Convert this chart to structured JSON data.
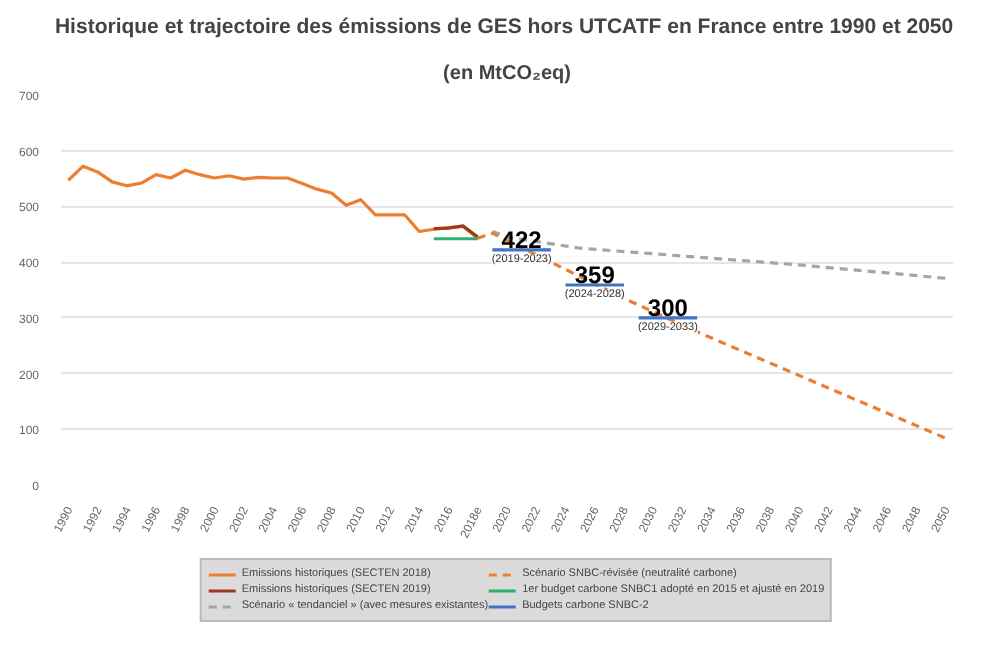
{
  "chart_data": {
    "type": "line",
    "title": "Historique et trajectoire des émissions  de GES hors UTCATF en France entre 1990 et 2050",
    "subtitle": "(en MtCO₂eq)",
    "xlim": [
      1989.5,
      2050.5
    ],
    "ylim": [
      0,
      700
    ],
    "xticks": [
      1990,
      1992,
      1994,
      1996,
      1998,
      2000,
      2002,
      2004,
      2006,
      2008,
      2010,
      2012,
      2014,
      2016,
      {
        "value": 2018,
        "label": "2018e"
      },
      2020,
      2022,
      2024,
      2026,
      2028,
      2030,
      2032,
      2034,
      2036,
      2038,
      2040,
      2042,
      2044,
      2046,
      2048,
      2050
    ],
    "yticks": [
      0,
      100,
      200,
      300,
      400,
      500,
      600,
      700
    ],
    "grid": "y",
    "legend": "bottom",
    "marker": "none",
    "series": [
      {
        "name": "Emissions historiques (SECTEN 2018)",
        "color": "#ed7d31",
        "line_style": "solid",
        "x": [
          1990,
          1991,
          1992,
          1993,
          1994,
          1995,
          1996,
          1997,
          1998,
          1999,
          2000,
          2001,
          2002,
          2003,
          2004,
          2005,
          2006,
          2007,
          2008,
          2009,
          2010,
          2011,
          2012,
          2013,
          2014,
          2015,
          2016,
          2017,
          2018
        ],
        "values": [
          547,
          572,
          562,
          544,
          537,
          542,
          557,
          551,
          565,
          557,
          551,
          555,
          549,
          552,
          551,
          551,
          541,
          531,
          524,
          502,
          512,
          485,
          485,
          485,
          455,
          459,
          462,
          464,
          443
        ]
      },
      {
        "name": "Emissions historiques (SECTEN 2019)",
        "color": "#9e3a1b",
        "line_style": "solid",
        "x": [
          2015,
          2016,
          2017,
          2018
        ],
        "values": [
          460,
          461,
          465,
          445
        ]
      },
      {
        "name": "Scénario « tendanciel » (avec mesures existantes)",
        "color": "#a5a5a5",
        "line_style": "dashed",
        "x": [
          2019,
          2020,
          2025,
          2030,
          2040,
          2050
        ],
        "values": [
          455,
          445,
          425,
          415,
          395,
          371
        ]
      },
      {
        "name": "Scénario SNBC-révisée (neutralité carbone)",
        "color": "#ed7d31",
        "line_style": "dashed",
        "x": [
          2018,
          2019,
          2023,
          2028,
          2033,
          2050
        ],
        "values": [
          443,
          452,
          400,
          335,
          275,
          84
        ]
      },
      {
        "name": "1er budget carbone SNBC1 adopté en 2015 et ajusté en 2019",
        "color": "#2eb070",
        "line_style": "solid",
        "x": [
          2015,
          2018
        ],
        "values": [
          442,
          442
        ]
      },
      {
        "name": "Budgets carbone SNBC-2",
        "color": "#4472c4",
        "line_style": "solid",
        "x": [
          2019,
          2023,
          2023.5,
          2024,
          2028,
          2028.5,
          2029,
          2033
        ],
        "values": [
          422,
          422,
          null,
          359,
          359,
          null,
          300,
          300
        ]
      }
    ],
    "annotations": [
      {
        "text": "422",
        "x": 2021,
        "y": 422
      },
      {
        "text": "(2019-2023)",
        "x": 2021,
        "y": 422
      },
      {
        "text": "359",
        "x": 2026,
        "y": 359
      },
      {
        "text": "(2024-2028)",
        "x": 2026,
        "y": 359
      },
      {
        "text": "300",
        "x": 2031,
        "y": 300
      },
      {
        "text": "(2029-2033)",
        "x": 2031,
        "y": 300
      }
    ]
  }
}
